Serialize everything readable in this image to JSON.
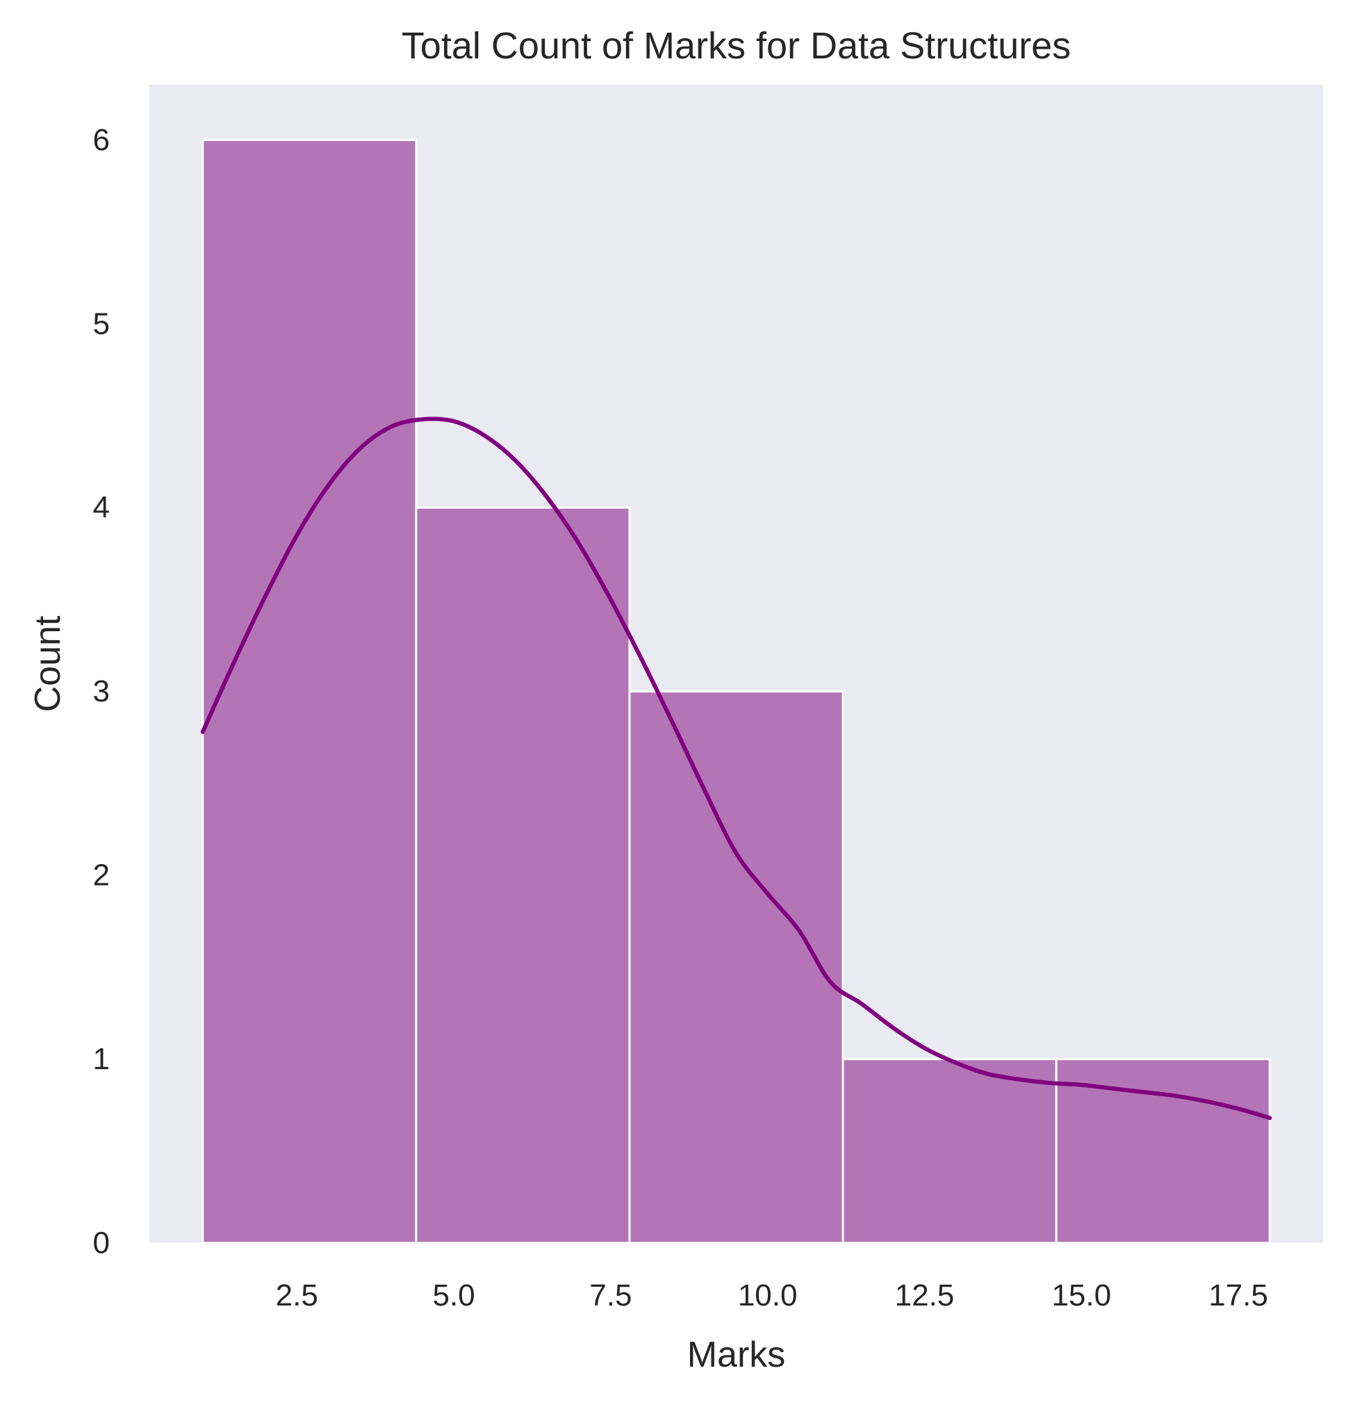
{
  "chart_data": {
    "type": "histogram",
    "title": "Total Count of Marks for Data Structures",
    "xlabel": "Marks",
    "ylabel": "Count",
    "bins": [
      {
        "start": 1.0,
        "end": 4.4,
        "count": 6
      },
      {
        "start": 4.4,
        "end": 7.8,
        "count": 4
      },
      {
        "start": 7.8,
        "end": 11.2,
        "count": 3
      },
      {
        "start": 11.2,
        "end": 14.6,
        "count": 1
      },
      {
        "start": 14.6,
        "end": 18.0,
        "count": 1
      }
    ],
    "kde": {
      "x": [
        1.0,
        1.5,
        2.0,
        2.5,
        3.0,
        3.5,
        4.0,
        4.5,
        5.0,
        5.5,
        6.0,
        6.5,
        7.0,
        7.5,
        8.0,
        8.5,
        9.0,
        9.5,
        10.0,
        10.5,
        11.0,
        11.5,
        12.0,
        12.5,
        13.0,
        13.5,
        14.0,
        14.5,
        15.0,
        15.5,
        16.0,
        16.5,
        17.0,
        17.5,
        18.0
      ],
      "y": [
        2.78,
        3.16,
        3.52,
        3.85,
        4.12,
        4.32,
        4.44,
        4.48,
        4.47,
        4.39,
        4.25,
        4.05,
        3.8,
        3.5,
        3.17,
        2.82,
        2.46,
        2.12,
        1.9,
        1.7,
        1.42,
        1.3,
        1.17,
        1.06,
        0.98,
        0.92,
        0.89,
        0.87,
        0.86,
        0.84,
        0.82,
        0.8,
        0.77,
        0.73,
        0.68
      ]
    },
    "xlim": [
      0.15,
      18.85
    ],
    "ylim": [
      0,
      6.3
    ],
    "xticks": [
      2.5,
      5.0,
      7.5,
      10.0,
      12.5,
      15.0,
      17.5
    ],
    "xtick_labels": [
      "2.5",
      "5.0",
      "7.5",
      "10.0",
      "12.5",
      "15.0",
      "17.5"
    ],
    "yticks": [
      0,
      1,
      2,
      3,
      4,
      5,
      6
    ],
    "ytick_labels": [
      "0",
      "1",
      "2",
      "3",
      "4",
      "5",
      "6"
    ],
    "grid": false,
    "colors": {
      "background": "#eaeaf2",
      "bar_fill": "#b375b6",
      "bar_edge": "#ffffff",
      "kde_line": "#800080"
    }
  }
}
